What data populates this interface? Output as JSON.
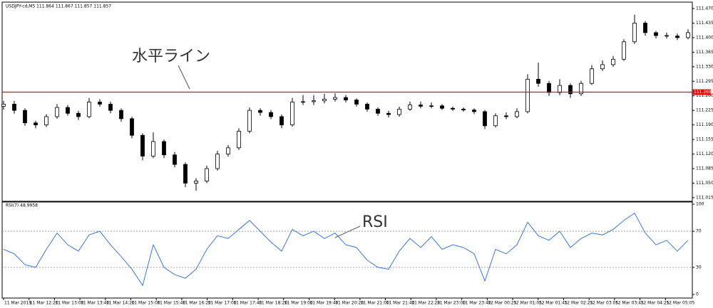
{
  "chart_data": [
    {
      "type": "candlestick",
      "title": "USDJPY-cd,M5  111.864 111.867 111.857 111.857",
      "annotation": "水平ライン",
      "ylim": [
        111.008,
        111.482
      ],
      "yticks": [
        111.015,
        {
          "value": 111.05,
          "label": "111.050"
        },
        111.085,
        {
          "value": 111.12,
          "label": "111.120"
        },
        111.155,
        {
          "value": 111.19,
          "label": "111.190"
        },
        111.225,
        {
          "value": 111.26,
          "label": "111.260"
        },
        111.295,
        {
          "value": 111.33,
          "label": "111.330"
        },
        111.365,
        {
          "value": 111.4,
          "label": "111.400"
        },
        111.435,
        {
          "value": 111.47,
          "label": "111.470"
        }
      ],
      "hline": {
        "value": 111.269,
        "label": "111.269",
        "color": "#ff0000"
      },
      "up_color": "#ffffff",
      "down_color": "#000000",
      "open": [
        111.235,
        111.24,
        111.225,
        111.195,
        111.19,
        111.21,
        111.232,
        111.218,
        111.21,
        111.245,
        111.24,
        111.225,
        111.205,
        111.165,
        111.115,
        111.15,
        111.118,
        111.095,
        111.05,
        111.055,
        111.085,
        111.12,
        111.135,
        111.175,
        111.225,
        111.22,
        111.21,
        111.19,
        111.245,
        111.246,
        111.248,
        111.252,
        111.256,
        111.25,
        111.24,
        111.228,
        111.218,
        111.215,
        111.228,
        111.238,
        111.235,
        111.236,
        111.23,
        111.228,
        111.226,
        111.222,
        111.188,
        111.212,
        111.21,
        111.222,
        111.3,
        111.29,
        111.268,
        111.285,
        111.265,
        111.29,
        111.325,
        111.335,
        111.348,
        111.39,
        111.435,
        111.412,
        111.405,
        111.404,
        111.4
      ],
      "high": [
        111.248,
        111.248,
        111.23,
        111.2,
        111.216,
        111.24,
        111.238,
        111.224,
        111.255,
        111.252,
        111.246,
        111.23,
        111.21,
        111.17,
        111.172,
        111.155,
        111.125,
        111.1,
        111.062,
        111.092,
        111.128,
        111.142,
        111.182,
        111.232,
        111.23,
        111.226,
        111.215,
        111.255,
        111.262,
        111.262,
        111.265,
        111.266,
        111.262,
        111.254,
        111.244,
        111.232,
        111.224,
        111.234,
        111.246,
        111.246,
        111.244,
        111.24,
        111.234,
        111.232,
        111.23,
        111.226,
        111.218,
        111.22,
        111.23,
        111.312,
        111.34,
        111.296,
        111.3,
        111.29,
        111.296,
        111.334,
        111.345,
        111.356,
        111.396,
        111.455,
        111.44,
        111.416,
        111.412,
        111.41,
        111.42
      ],
      "low": [
        111.227,
        111.217,
        111.188,
        111.182,
        111.185,
        111.205,
        111.212,
        111.202,
        111.206,
        111.234,
        111.218,
        111.198,
        111.158,
        111.105,
        111.11,
        111.11,
        111.088,
        111.04,
        111.032,
        111.05,
        111.08,
        111.114,
        111.13,
        111.17,
        111.212,
        111.204,
        111.182,
        111.186,
        111.238,
        111.238,
        111.242,
        111.246,
        111.244,
        111.234,
        111.222,
        111.212,
        111.208,
        111.21,
        111.224,
        111.23,
        111.23,
        111.226,
        111.224,
        111.222,
        111.216,
        111.18,
        111.184,
        111.204,
        111.206,
        111.218,
        111.282,
        111.26,
        111.262,
        111.255,
        111.26,
        111.286,
        111.32,
        111.33,
        111.344,
        111.385,
        111.405,
        111.398,
        111.398,
        111.394,
        111.396
      ],
      "close": [
        111.24,
        111.225,
        111.195,
        111.19,
        111.21,
        111.232,
        111.218,
        111.21,
        111.245,
        111.24,
        111.225,
        111.205,
        111.165,
        111.115,
        111.15,
        111.118,
        111.095,
        111.05,
        111.055,
        111.085,
        111.12,
        111.135,
        111.175,
        111.225,
        111.22,
        111.21,
        111.19,
        111.245,
        111.246,
        111.248,
        111.252,
        111.256,
        111.25,
        111.24,
        111.228,
        111.218,
        111.215,
        111.228,
        111.238,
        111.235,
        111.236,
        111.23,
        111.228,
        111.226,
        111.222,
        111.188,
        111.212,
        111.21,
        111.222,
        111.3,
        111.29,
        111.268,
        111.285,
        111.265,
        111.29,
        111.325,
        111.335,
        111.348,
        111.39,
        111.435,
        111.412,
        111.405,
        111.404,
        111.4,
        111.412
      ]
    },
    {
      "type": "line",
      "title": "RSI(7) 48.9958",
      "annotation": "RSI",
      "color": "#3a78d8",
      "ylim": [
        0,
        100
      ],
      "yticks": [
        0,
        30,
        70,
        100
      ],
      "levels": [
        30,
        70
      ],
      "values": [
        50,
        45,
        33,
        30,
        50,
        68,
        55,
        48,
        66,
        70,
        55,
        42,
        28,
        10,
        55,
        30,
        22,
        18,
        28,
        50,
        65,
        62,
        72,
        82,
        70,
        58,
        48,
        72,
        65,
        70,
        62,
        68,
        55,
        52,
        38,
        30,
        28,
        48,
        62,
        52,
        64,
        50,
        55,
        52,
        45,
        15,
        50,
        45,
        55,
        80,
        65,
        60,
        70,
        52,
        62,
        68,
        66,
        72,
        82,
        90,
        68,
        55,
        60,
        48,
        60
      ],
      "xtick_labels": [
        "11 Mar 2019",
        "11 Mar 12:20",
        "11 Mar 13:00",
        "11 Mar 13:40",
        "11 Mar 14:20",
        "11 Mar 15:00",
        "11 Mar 15:40",
        "11 Mar 16:20",
        "11 Mar 17:00",
        "11 Mar 17:40",
        "11 Mar 18:20",
        "11 Mar 19:00",
        "11 Mar 19:40",
        "11 Mar 20:20",
        "11 Mar 21:00",
        "11 Mar 21:40",
        "11 Mar 22:20",
        "11 Mar 23:00",
        "11 Mar 23:40",
        "12 Mar 00:25",
        "12 Mar 01:05",
        "12 Mar 01:45",
        "12 Mar 02:25",
        "12 Mar 03:05",
        "12 Mar 03:45",
        "12 Mar 04:25",
        "12 Mar 05:05"
      ]
    }
  ]
}
